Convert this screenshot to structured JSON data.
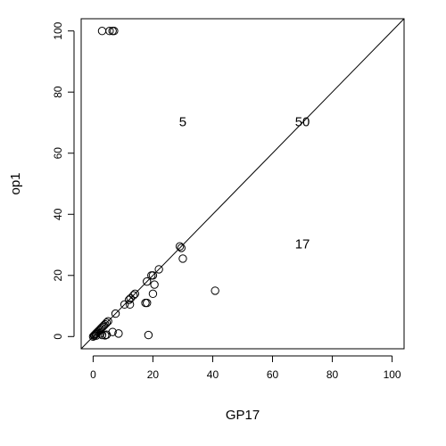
{
  "chart_data": {
    "type": "scatter",
    "title": "",
    "xlabel": "GP17",
    "ylabel": "op1",
    "xlim": [
      -4,
      104
    ],
    "ylim": [
      -4,
      104
    ],
    "xticks": [
      0,
      20,
      40,
      60,
      80,
      100
    ],
    "yticks": [
      0,
      20,
      40,
      60,
      80,
      100
    ],
    "grid": false,
    "reference_line": "y = x",
    "annotations": [
      {
        "text": "5",
        "x": 30,
        "y": 70
      },
      {
        "text": "50",
        "x": 70,
        "y": 70
      },
      {
        "text": "17",
        "x": 70,
        "y": 30
      }
    ],
    "points": [
      [
        3,
        100
      ],
      [
        5.5,
        100
      ],
      [
        6.5,
        100
      ],
      [
        7,
        100
      ],
      [
        0,
        0
      ],
      [
        0.3,
        0.3
      ],
      [
        0.5,
        0.5
      ],
      [
        0.8,
        0.8
      ],
      [
        1,
        1
      ],
      [
        1.3,
        1.3
      ],
      [
        1.6,
        1.6
      ],
      [
        2,
        2
      ],
      [
        2.4,
        2.4
      ],
      [
        2.8,
        2.8
      ],
      [
        3.2,
        3.2
      ],
      [
        3.6,
        3.6
      ],
      [
        4,
        4
      ],
      [
        4.5,
        4.5
      ],
      [
        5,
        5
      ],
      [
        1,
        0.3
      ],
      [
        2.5,
        1
      ],
      [
        3,
        0.5
      ],
      [
        4,
        0.4
      ],
      [
        4.5,
        0.6
      ],
      [
        6.5,
        1.5
      ],
      [
        8.5,
        1
      ],
      [
        7.5,
        7.5
      ],
      [
        10.5,
        10.5
      ],
      [
        12,
        12
      ],
      [
        12.5,
        12.5
      ],
      [
        13.5,
        13.5
      ],
      [
        14,
        14
      ],
      [
        12.3,
        10.5
      ],
      [
        18,
        18
      ],
      [
        17.5,
        11
      ],
      [
        18,
        11
      ],
      [
        19.5,
        20
      ],
      [
        20,
        20
      ],
      [
        20.5,
        17
      ],
      [
        20,
        14
      ],
      [
        22,
        22
      ],
      [
        29,
        29.5
      ],
      [
        29.5,
        29
      ],
      [
        30,
        25.5
      ],
      [
        18.5,
        0.5
      ],
      [
        40.8,
        15
      ]
    ]
  }
}
